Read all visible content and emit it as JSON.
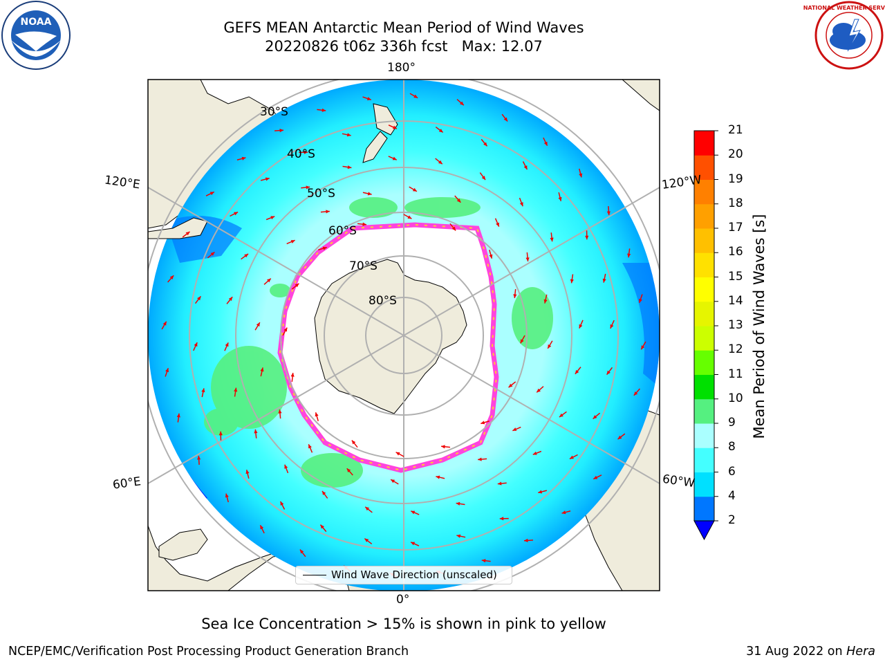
{
  "title": {
    "line1": "GEFS MEAN Antarctic Mean Period of Wind Waves",
    "line2": "20220826 t06z 336h fcst   Max: 12.07"
  },
  "map": {
    "projection": "south-polar-stereographic",
    "colors": {
      "land": "#efecdc",
      "ice_free_polar": "#ffffff",
      "grid": "#b0b0b0",
      "arrow": "#ee0000",
      "ice_edge_pink": "#ff44dd",
      "ice_edge_yellow": "#ffcc33"
    },
    "longitude_labels": {
      "top": "180°",
      "bottom": "0°",
      "upper_left": "120°E",
      "upper_right": "120°W",
      "lower_left": "60°E",
      "lower_right": "60°W"
    },
    "latitude_labels": [
      "30°S",
      "40°S",
      "50°S",
      "60°S",
      "70°S",
      "80°S"
    ],
    "legend": {
      "label": "Wind Wave Direction (unscaled)"
    }
  },
  "colorbar": {
    "title": "Mean Period of Wind Waves [s]",
    "ticks": [
      "2",
      "4",
      "6",
      "8",
      "9",
      "10",
      "11",
      "12",
      "13",
      "14",
      "15",
      "16",
      "17",
      "18",
      "19",
      "20",
      "21"
    ],
    "colors": [
      "#0077ff",
      "#00e0ff",
      "#44ffff",
      "#aaffff",
      "#55f080",
      "#00e000",
      "#66ff00",
      "#ccff00",
      "#e6f500",
      "#ffff00",
      "#ffe100",
      "#ffc000",
      "#ffa000",
      "#ff8000",
      "#ff5000",
      "#ff0000"
    ],
    "extend_color": "#0000ff"
  },
  "caption": "Sea Ice Concentration > 15% is shown in pink to yellow",
  "footer": {
    "left": "NCEP/EMC/Verification Post Processing Product Generation Branch",
    "right_date": "31 Aug 2022 on ",
    "right_host": "Hera"
  },
  "logos": {
    "left": {
      "name": "noaa-logo",
      "text": "NOAA"
    },
    "right": {
      "name": "nws-logo",
      "text": "NATIONAL WEATHER SERVICE"
    }
  }
}
